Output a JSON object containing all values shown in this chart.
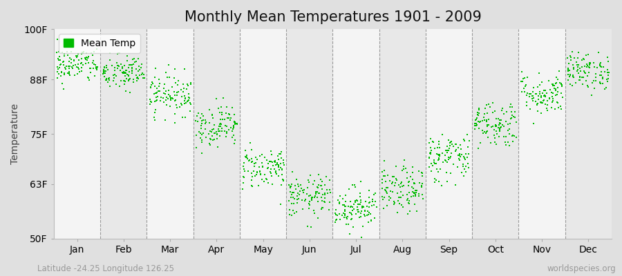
{
  "title": "Monthly Mean Temperatures 1901 - 2009",
  "ylabel": "Temperature",
  "xlabel_bottom": "Latitude -24.25 Longitude 126.25",
  "xlabel_bottomright": "worldspecies.org",
  "ylim": [
    50,
    100
  ],
  "yticks": [
    50,
    63,
    75,
    88,
    100
  ],
  "ytick_labels": [
    "50F",
    "63F",
    "75F",
    "88F",
    "100F"
  ],
  "months": [
    "Jan",
    "Feb",
    "Mar",
    "Apr",
    "May",
    "Jun",
    "Jul",
    "Aug",
    "Sep",
    "Oct",
    "Nov",
    "Dec"
  ],
  "month_means_F": [
    91.5,
    89.5,
    84.5,
    77.0,
    67.0,
    60.0,
    57.5,
    61.5,
    69.5,
    77.5,
    84.5,
    90.0
  ],
  "month_stds_F": [
    2.2,
    2.2,
    2.5,
    2.5,
    2.5,
    2.5,
    2.5,
    2.8,
    3.0,
    2.8,
    2.5,
    2.2
  ],
  "n_years": 109,
  "dot_color": "#00bb00",
  "dot_size": 3,
  "legend_label": "Mean Temp",
  "background_color": "#e0e0e0",
  "plot_bg_color_odd": "#e8e8e8",
  "plot_bg_color_even": "#f4f4f4",
  "title_fontsize": 15,
  "axis_label_fontsize": 10,
  "tick_label_fontsize": 10,
  "dashed_line_color": "#999999",
  "seed": 42
}
